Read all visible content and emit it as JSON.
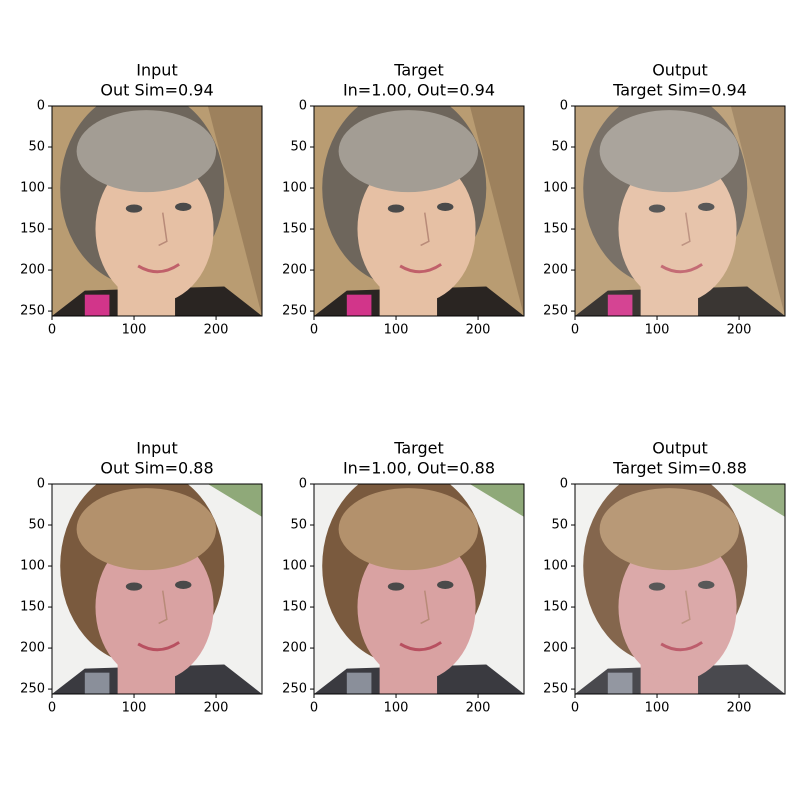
{
  "chart_data": [
    {
      "type": "image",
      "title": "Input",
      "subtitle": "Out Sim=0.94",
      "xlim": [
        0,
        256
      ],
      "ylim": [
        256,
        0
      ],
      "xticks": [
        0,
        100,
        200
      ],
      "yticks": [
        0,
        50,
        100,
        150,
        200,
        250
      ]
    },
    {
      "type": "image",
      "title": "Target",
      "subtitle": "In=1.00, Out=0.94",
      "xlim": [
        0,
        256
      ],
      "ylim": [
        256,
        0
      ],
      "xticks": [
        0,
        100,
        200
      ],
      "yticks": [
        0,
        50,
        100,
        150,
        200,
        250
      ]
    },
    {
      "type": "image",
      "title": "Output",
      "subtitle": "Target Sim=0.94",
      "xlim": [
        0,
        256
      ],
      "ylim": [
        256,
        0
      ],
      "xticks": [
        0,
        100,
        200
      ],
      "yticks": [
        0,
        50,
        100,
        150,
        200,
        250
      ]
    },
    {
      "type": "image",
      "title": "Input",
      "subtitle": "Out Sim=0.88",
      "xlim": [
        0,
        256
      ],
      "ylim": [
        256,
        0
      ],
      "xticks": [
        0,
        100,
        200
      ],
      "yticks": [
        0,
        50,
        100,
        150,
        200,
        250
      ]
    },
    {
      "type": "image",
      "title": "Target",
      "subtitle": "In=1.00, Out=0.88",
      "xlim": [
        0,
        256
      ],
      "ylim": [
        256,
        0
      ],
      "xticks": [
        0,
        100,
        200
      ],
      "yticks": [
        0,
        50,
        100,
        150,
        200,
        250
      ]
    },
    {
      "type": "image",
      "title": "Output",
      "subtitle": "Target Sim=0.88",
      "xlim": [
        0,
        256
      ],
      "ylim": [
        256,
        0
      ],
      "xticks": [
        0,
        100,
        200
      ],
      "yticks": [
        0,
        50,
        100,
        150,
        200,
        250
      ]
    }
  ]
}
